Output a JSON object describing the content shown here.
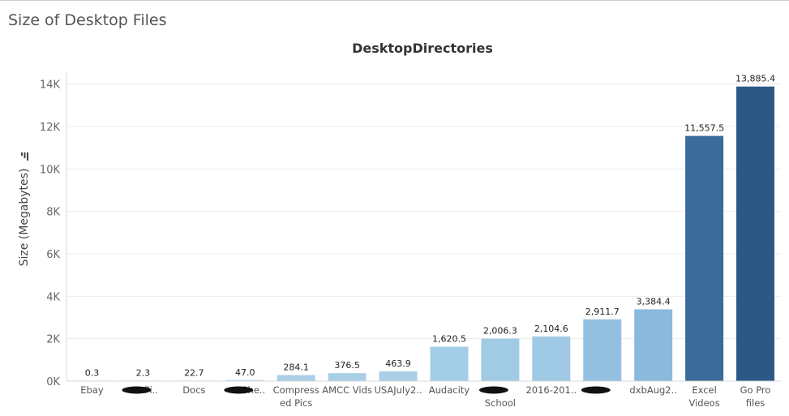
{
  "page": {
    "title": "Size of Desktop Files"
  },
  "chart_data": {
    "type": "bar",
    "title": "DesktopDirectories",
    "xlabel": "",
    "ylabel": "Size (Megabytes)",
    "ylim": [
      0,
      14600
    ],
    "yticks": [
      0,
      2000,
      4000,
      6000,
      8000,
      10000,
      12000,
      14000
    ],
    "ytick_labels": [
      "0K",
      "2K",
      "4K",
      "6K",
      "8K",
      "10K",
      "12K",
      "14K"
    ],
    "grid": true,
    "categories": [
      {
        "lines": [
          "Ebay"
        ],
        "redacted": false
      },
      {
        "lines": [
          "Pi.."
        ],
        "redacted": true
      },
      {
        "lines": [
          "Docs"
        ],
        "redacted": false
      },
      {
        "lines": [
          "Che.."
        ],
        "redacted": true
      },
      {
        "lines": [
          "Compress",
          "ed Pics"
        ],
        "redacted": false
      },
      {
        "lines": [
          "AMCC Vids"
        ],
        "redacted": false
      },
      {
        "lines": [
          "USAJuly2.."
        ],
        "redacted": false
      },
      {
        "lines": [
          "Audacity"
        ],
        "redacted": false
      },
      {
        "lines": [
          "",
          "School"
        ],
        "redacted": true
      },
      {
        "lines": [
          "2016-201.."
        ],
        "redacted": false
      },
      {
        "lines": [
          ""
        ],
        "redacted": true
      },
      {
        "lines": [
          "dxbAug2.."
        ],
        "redacted": false
      },
      {
        "lines": [
          "Excel",
          "Videos"
        ],
        "redacted": false
      },
      {
        "lines": [
          "Go Pro",
          "files"
        ],
        "redacted": false
      }
    ],
    "values": [
      0.3,
      2.3,
      22.7,
      47.0,
      284.1,
      376.5,
      463.9,
      1620.5,
      2006.3,
      2104.6,
      2911.7,
      3384.4,
      11557.5,
      13885.4
    ],
    "value_labels": [
      "0.3",
      "2.3",
      "22.7",
      "47.0",
      "284.1",
      "376.5",
      "463.9",
      "1,620.5",
      "2,006.3",
      "2,104.6",
      "2,911.7",
      "3,384.4",
      "11,557.5",
      "13,885.4"
    ],
    "colors": [
      "#a9cfe6",
      "#a9cfe6",
      "#a9cfe6",
      "#a9cfe6",
      "#a9cfe6",
      "#a9cfe6",
      "#a9cfe6",
      "#a3cde6",
      "#a1cbe5",
      "#9fc9e4",
      "#94c0df",
      "#8bb9dc",
      "#3a6b9a",
      "#2c5886"
    ]
  }
}
